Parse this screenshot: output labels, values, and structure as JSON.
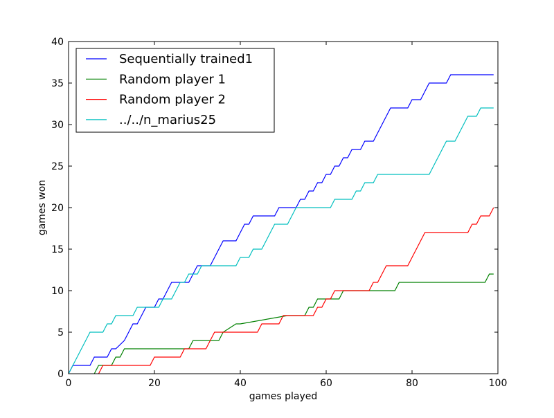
{
  "chart_data": {
    "type": "line",
    "title": "",
    "xlabel": "games played",
    "ylabel": "games won",
    "xlim": [
      0,
      100
    ],
    "ylim": [
      0,
      40
    ],
    "x_ticks": [
      0,
      20,
      40,
      60,
      80,
      100
    ],
    "y_ticks": [
      0,
      5,
      10,
      15,
      20,
      25,
      30,
      35,
      40
    ],
    "grid": false,
    "legend_position": "top-left",
    "series": [
      {
        "name": "Sequentially trained1",
        "color": "#0000ff",
        "x": [
          0,
          1,
          5,
          6,
          9,
          10,
          11,
          13,
          14,
          15,
          16,
          17,
          18,
          19,
          20,
          21,
          22,
          23,
          24,
          25,
          28,
          29,
          30,
          31,
          33,
          34,
          35,
          36,
          37,
          38,
          39,
          40,
          41,
          42,
          43,
          44,
          45,
          46,
          47,
          48,
          49,
          50,
          51,
          52,
          53,
          54,
          55,
          56,
          57,
          58,
          59,
          60,
          61,
          62,
          63,
          64,
          65,
          66,
          67,
          68,
          69,
          70,
          71,
          72,
          73,
          74,
          75,
          76,
          77,
          78,
          79,
          80,
          81,
          82,
          83,
          84,
          85,
          86,
          87,
          88,
          89,
          90,
          91,
          92,
          93,
          94,
          95,
          96,
          97,
          98,
          99
        ],
        "y": [
          0,
          1,
          1,
          2,
          2,
          3,
          3,
          4,
          5,
          6,
          6,
          7,
          8,
          8,
          8,
          9,
          9,
          10,
          11,
          11,
          11,
          12,
          13,
          13,
          13,
          14,
          15,
          16,
          16,
          16,
          16,
          17,
          18,
          18,
          19,
          19,
          19,
          19,
          19,
          19,
          20,
          20,
          20,
          20,
          20,
          21,
          21,
          22,
          22,
          23,
          23,
          24,
          24,
          25,
          25,
          26,
          26,
          27,
          27,
          27,
          28,
          28,
          28,
          29,
          30,
          31,
          32,
          32,
          32,
          32,
          32,
          33,
          33,
          33,
          34,
          35,
          35,
          35,
          35,
          35,
          36,
          36,
          36,
          36,
          36,
          36,
          36,
          36,
          36,
          36,
          36
        ]
      },
      {
        "name": "Random player 1",
        "color": "#008000",
        "x": [
          6,
          7,
          8,
          10,
          11,
          12,
          13,
          28,
          29,
          30,
          35,
          36,
          39,
          40,
          51,
          52,
          55,
          56,
          57,
          58,
          59,
          60,
          63,
          64,
          65,
          66,
          67,
          68,
          75,
          76,
          77,
          78,
          96,
          97,
          98,
          99
        ],
        "y": [
          0,
          1,
          1,
          1,
          2,
          2,
          3,
          3,
          4,
          4,
          4,
          5,
          6,
          6,
          7,
          7,
          7,
          8,
          8,
          9,
          9,
          9,
          9,
          10,
          10,
          10,
          10,
          10,
          10,
          10,
          11,
          11,
          11,
          11,
          12,
          12
        ]
      },
      {
        "name": "Random player 2",
        "color": "#ff0000",
        "x": [
          7,
          8,
          9,
          19,
          20,
          26,
          27,
          32,
          33,
          34,
          35,
          44,
          45,
          49,
          50,
          57,
          58,
          59,
          60,
          61,
          62,
          63,
          64,
          70,
          71,
          72,
          73,
          74,
          79,
          80,
          81,
          82,
          83,
          93,
          94,
          95,
          96,
          97,
          98,
          99
        ],
        "y": [
          0,
          1,
          1,
          1,
          2,
          2,
          3,
          3,
          4,
          5,
          5,
          5,
          6,
          6,
          7,
          7,
          8,
          8,
          9,
          9,
          10,
          10,
          10,
          10,
          11,
          11,
          12,
          13,
          13,
          14,
          15,
          16,
          17,
          17,
          18,
          18,
          19,
          19,
          19,
          20
        ]
      },
      {
        "name": "../../n_marius25",
        "color": "#00bfbf",
        "x": [
          0,
          1,
          2,
          3,
          4,
          5,
          6,
          7,
          8,
          9,
          10,
          11,
          12,
          15,
          16,
          17,
          18,
          19,
          20,
          21,
          22,
          23,
          24,
          25,
          26,
          27,
          28,
          29,
          30,
          31,
          32,
          33,
          34,
          35,
          36,
          37,
          38,
          39,
          40,
          41,
          42,
          43,
          44,
          45,
          46,
          47,
          48,
          49,
          50,
          51,
          52,
          53,
          54,
          55,
          56,
          57,
          58,
          59,
          60,
          61,
          62,
          63,
          64,
          65,
          66,
          67,
          68,
          69,
          70,
          71,
          72,
          73,
          74,
          75,
          76,
          77,
          78,
          79,
          80,
          81,
          82,
          83,
          84,
          85,
          86,
          87,
          88,
          89,
          90,
          91,
          92,
          93,
          94,
          95,
          96,
          97,
          98,
          99
        ],
        "y": [
          0,
          1,
          2,
          3,
          4,
          5,
          5,
          5,
          5,
          6,
          6,
          7,
          7,
          7,
          8,
          8,
          8,
          8,
          8,
          8,
          9,
          9,
          9,
          10,
          11,
          11,
          12,
          12,
          12,
          13,
          13,
          13,
          13,
          13,
          13,
          13,
          13,
          13,
          14,
          14,
          14,
          15,
          15,
          15,
          16,
          17,
          18,
          18,
          18,
          18,
          19,
          20,
          20,
          20,
          20,
          20,
          20,
          20,
          20,
          20,
          21,
          21,
          21,
          21,
          21,
          22,
          22,
          23,
          23,
          23,
          24,
          24,
          24,
          24,
          24,
          24,
          24,
          24,
          24,
          24,
          24,
          24,
          24,
          25,
          26,
          27,
          28,
          28,
          28,
          29,
          30,
          31,
          31,
          31,
          32,
          32,
          32,
          32
        ]
      }
    ]
  }
}
